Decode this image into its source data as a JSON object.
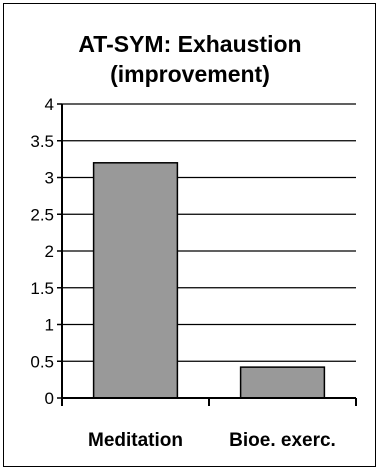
{
  "chart_data": {
    "type": "bar",
    "title": [
      "AT-SYM: Exhaustion",
      "(improvement)"
    ],
    "xlabel": "",
    "ylabel": "",
    "categories": [
      "Meditation",
      "Bioe. exerc."
    ],
    "values": [
      3.2,
      0.42
    ],
    "ylim": [
      0,
      4
    ],
    "yticks": [
      "0",
      "0.5",
      "1",
      "1.5",
      "2",
      "2.5",
      "3",
      "3.5",
      "4"
    ],
    "grid": true,
    "legend": "none",
    "colors": {
      "bar_fill": "#999999",
      "bar_stroke": "#000000",
      "grid": "#000000",
      "background": "#ffffff"
    }
  }
}
